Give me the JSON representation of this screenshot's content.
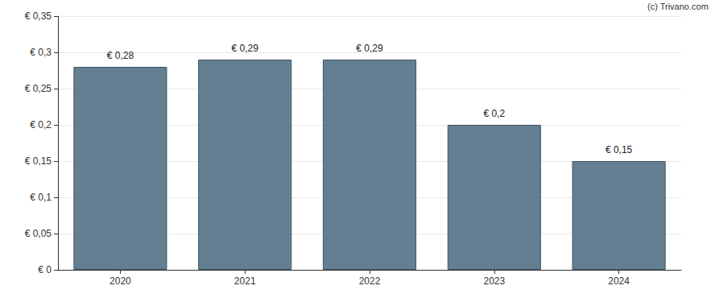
{
  "chart_data": {
    "type": "bar",
    "categories": [
      "2020",
      "2021",
      "2022",
      "2023",
      "2024"
    ],
    "values": [
      0.28,
      0.29,
      0.29,
      0.2,
      0.15
    ],
    "value_labels": [
      "€ 0,28",
      "€ 0,29",
      "€ 0,29",
      "€ 0,2",
      "€ 0,15"
    ],
    "data_labels": true,
    "color": "#647f91",
    "ylim": [
      0,
      0.35
    ],
    "yticks": [
      {
        "value": 0,
        "label": "€ 0"
      },
      {
        "value": 0.05,
        "label": "€ 0,05"
      },
      {
        "value": 0.1,
        "label": "€ 0,1"
      },
      {
        "value": 0.15,
        "label": "€ 0,15"
      },
      {
        "value": 0.2,
        "label": "€ 0,2"
      },
      {
        "value": 0.25,
        "label": "€ 0,25"
      },
      {
        "value": 0.3,
        "label": "€ 0,3"
      },
      {
        "value": 0.35,
        "label": "€ 0,35"
      }
    ],
    "grid": true,
    "annotations": [
      "(c) Trivano.com"
    ]
  }
}
